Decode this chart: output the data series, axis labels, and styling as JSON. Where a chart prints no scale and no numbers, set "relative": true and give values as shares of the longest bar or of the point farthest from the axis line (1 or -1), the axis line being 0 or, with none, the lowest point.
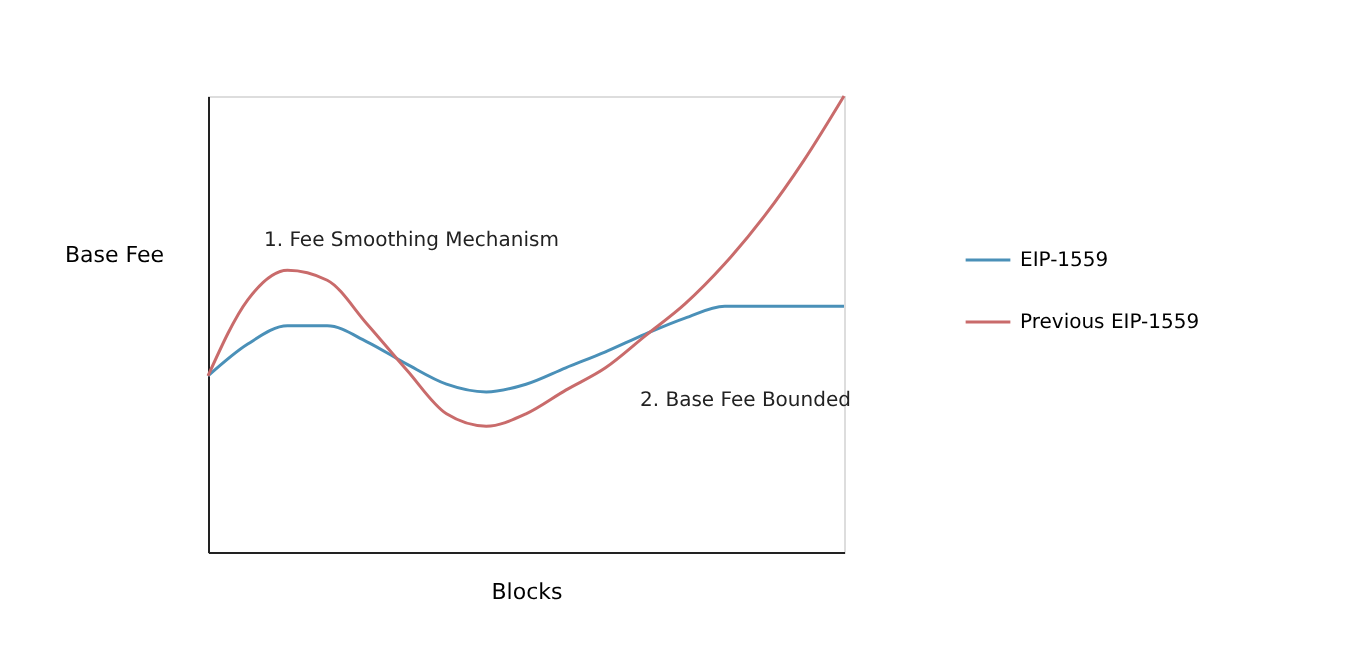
{
  "chart_data": {
    "type": "line",
    "relative": true,
    "xlabel": "Blocks",
    "ylabel": "Base Fee",
    "legend": "right",
    "grid": false,
    "marker": "none",
    "line_style": "solid",
    "categories": [
      null,
      null,
      null,
      null,
      null,
      null,
      null,
      null,
      null,
      null,
      null,
      null,
      null,
      null,
      null,
      null,
      null
    ],
    "annotations": [
      "1. Fee Smoothing Mechanism",
      "2. Base Fee Bounded"
    ],
    "series": [
      {
        "name": "EIP-1559",
        "color": "#4a90b8",
        "values": [
          0.386,
          0.456,
          0.496,
          0.496,
          0.461,
          0.412,
          0.368,
          0.351,
          0.368,
          0.404,
          0.439,
          0.478,
          0.513,
          0.539,
          0.539,
          0.539,
          0.539
        ]
      },
      {
        "name": "Previous EIP-1559",
        "color": "#c96b6b",
        "values": [
          0.386,
          0.553,
          0.618,
          0.596,
          0.5,
          0.399,
          0.303,
          0.276,
          0.303,
          0.355,
          0.404,
          0.474,
          0.544,
          0.632,
          0.737,
          0.86,
          1
        ]
      }
    ]
  }
}
